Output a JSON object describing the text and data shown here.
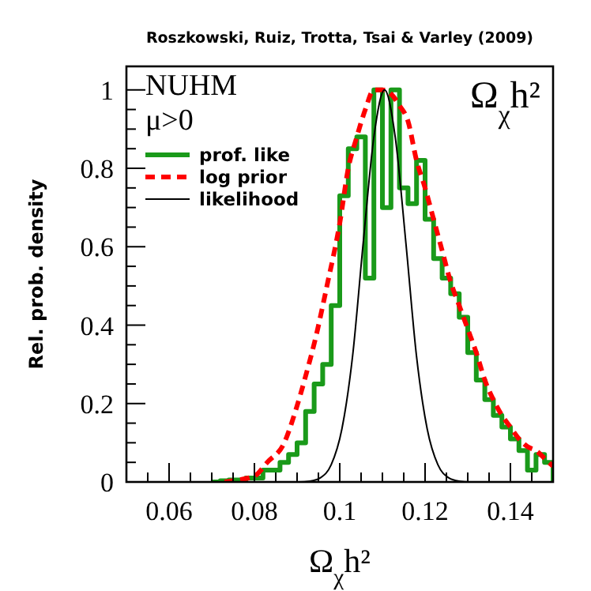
{
  "chart_data": {
    "type": "histogram",
    "title": "Roszkowski, Ruiz, Trotta, Tsai & Varley (2009)",
    "xlabel": "Ω$_{χ}$h²",
    "ylabel": "Rel. prob. density",
    "annotations": [
      "NUHM",
      "μ>0",
      "Ω$_{χ}$h²"
    ],
    "xlim": [
      0.05,
      0.15
    ],
    "ylim": [
      0,
      1.06
    ],
    "xticks": [
      {
        "value": 0.05,
        "label": null
      },
      {
        "value": 0.055,
        "label": null
      },
      0.06,
      {
        "value": 0.065,
        "label": null
      },
      {
        "value": 0.07,
        "label": null
      },
      {
        "value": 0.075,
        "label": null
      },
      0.08,
      {
        "value": 0.085,
        "label": null
      },
      {
        "value": 0.09,
        "label": null
      },
      {
        "value": 0.095,
        "label": null
      },
      0.1,
      {
        "value": 0.105,
        "label": null
      },
      {
        "value": 0.11,
        "label": null
      },
      {
        "value": 0.115,
        "label": null
      },
      0.12,
      {
        "value": 0.125,
        "label": null
      },
      {
        "value": 0.13,
        "label": null
      },
      {
        "value": 0.135,
        "label": null
      },
      0.14,
      {
        "value": 0.145,
        "label": null
      }
    ],
    "yticks": [
      0,
      {
        "value": 0.05,
        "label": null
      },
      {
        "value": 0.1,
        "label": null
      },
      {
        "value": 0.15,
        "label": null
      },
      0.2,
      {
        "value": 0.25,
        "label": null
      },
      {
        "value": 0.3,
        "label": null
      },
      {
        "value": 0.35,
        "label": null
      },
      0.4,
      {
        "value": 0.45,
        "label": null
      },
      {
        "value": 0.5,
        "label": null
      },
      {
        "value": 0.55,
        "label": null
      },
      0.6,
      {
        "value": 0.65,
        "label": null
      },
      {
        "value": 0.7,
        "label": null
      },
      {
        "value": 0.75,
        "label": null
      },
      0.8,
      {
        "value": 0.85,
        "label": null
      },
      {
        "value": 0.9,
        "label": null
      },
      {
        "value": 0.95,
        "label": null
      },
      1
    ],
    "bins": [
      0.07,
      0.072,
      0.074,
      0.076,
      0.078,
      0.08,
      0.082,
      0.084,
      0.086,
      0.088,
      0.09,
      0.092,
      0.094,
      0.096,
      0.098,
      0.1,
      0.102,
      0.104,
      0.106,
      0.108,
      0.11,
      0.112,
      0.114,
      0.116,
      0.118,
      0.12,
      0.122,
      0.124,
      0.126,
      0.128,
      0.13,
      0.132,
      0.134,
      0.136,
      0.138,
      0.14,
      0.142,
      0.144,
      0.146,
      0.148,
      0.15
    ],
    "legend": "top left",
    "grid": false,
    "marker": "none",
    "series": [
      {
        "name": "prof. like",
        "color": "#1a9a1a",
        "line_style": "solid",
        "values": [
          0,
          0.003,
          0.005,
          0.005,
          0.01,
          0.01,
          0.03,
          0.03,
          0.05,
          0.07,
          0.1,
          0.18,
          0.25,
          0.3,
          0.45,
          0.73,
          0.85,
          0.88,
          0.52,
          1,
          0.7,
          1,
          0.75,
          0.71,
          0.82,
          0.67,
          0.57,
          0.52,
          0.48,
          0.42,
          0.33,
          0.26,
          0.21,
          0.17,
          0.14,
          0.11,
          0.08,
          0.03,
          0.07,
          0.05
        ]
      },
      {
        "name": "log prior",
        "type": "line",
        "color": "#ff0000",
        "line_style": "dashed",
        "x": [
          0.073,
          0.076,
          0.08,
          0.083,
          0.087,
          0.0896,
          0.092,
          0.0944,
          0.097,
          0.1,
          0.102,
          0.104,
          0.106,
          0.108,
          0.11,
          0.112,
          0.114,
          0.116,
          0.118,
          0.12,
          0.122,
          0.124,
          0.126,
          0.128,
          0.13,
          0.132,
          0.134,
          0.136,
          0.138,
          0.14,
          0.142,
          0.144,
          0.146,
          0.148,
          0.15
        ],
        "values": [
          0,
          0.005,
          0.015,
          0.05,
          0.1,
          0.18,
          0.27,
          0.37,
          0.5,
          0.66,
          0.8,
          0.88,
          0.95,
          1,
          1,
          0.99,
          0.96,
          0.92,
          0.82,
          0.75,
          0.67,
          0.59,
          0.51,
          0.45,
          0.39,
          0.33,
          0.26,
          0.21,
          0.17,
          0.14,
          0.11,
          0.09,
          0.08,
          0.06,
          0.04
        ]
      },
      {
        "name": "likelihood",
        "type": "line",
        "color": "#000000",
        "line_style": "solid",
        "x": [
          0.075,
          0.0905,
          0.093,
          0.0955,
          0.098,
          0.1005,
          0.103,
          0.1055,
          0.108,
          0.1105,
          0.113,
          0.1155,
          0.118,
          0.1205,
          0.123,
          0.1255,
          0.128,
          0.1305,
          0.135
        ],
        "values": [
          0,
          0,
          0.002,
          0.011,
          0.044,
          0.135,
          0.32,
          0.61,
          0.88,
          1,
          0.88,
          0.61,
          0.32,
          0.135,
          0.044,
          0.011,
          0.002,
          0,
          0
        ]
      }
    ]
  }
}
